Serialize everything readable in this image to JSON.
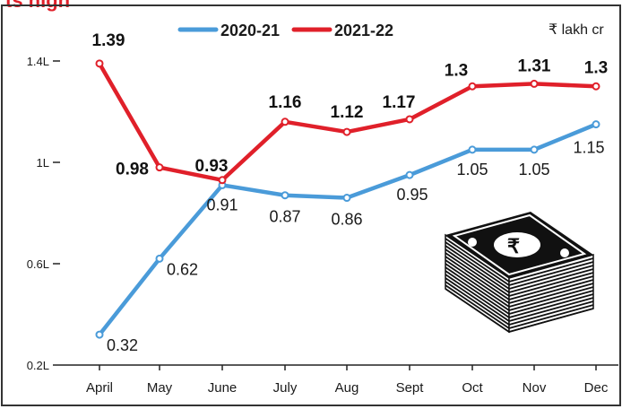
{
  "chart_data": {
    "type": "line",
    "title_fragment": "ts high",
    "unit": "₹ lakh cr",
    "categories": [
      "April",
      "May",
      "June",
      "July",
      "Aug",
      "Sept",
      "Oct",
      "Nov",
      "Dec"
    ],
    "series": [
      {
        "name": "2020-21",
        "color": "#4a9bd9",
        "values": [
          0.32,
          0.62,
          0.91,
          0.87,
          0.86,
          0.95,
          1.05,
          1.05,
          1.15
        ],
        "labels": [
          "0.32",
          "0.62",
          "0.91",
          "0.87",
          "0.86",
          "0.95",
          "1.05",
          "1.05",
          "1.15"
        ]
      },
      {
        "name": "2021-22",
        "color": "#e0202a",
        "values": [
          1.39,
          0.98,
          0.93,
          1.16,
          1.12,
          1.17,
          1.3,
          1.31,
          1.3
        ],
        "labels": [
          "1.39",
          "0.98",
          "0.93",
          "1.16",
          "1.12",
          "1.17",
          "1.3",
          "1.31",
          "1.3"
        ]
      }
    ],
    "yticks": [
      0.2,
      0.6,
      1.0,
      1.4
    ],
    "ytick_labels": [
      "0.2L",
      "0.6L",
      "1L",
      "1.4L"
    ],
    "ylim": [
      0.2,
      1.4
    ],
    "grid": false,
    "legend_position": "top-center"
  },
  "illustration": {
    "name": "currency-bundle-icon"
  }
}
